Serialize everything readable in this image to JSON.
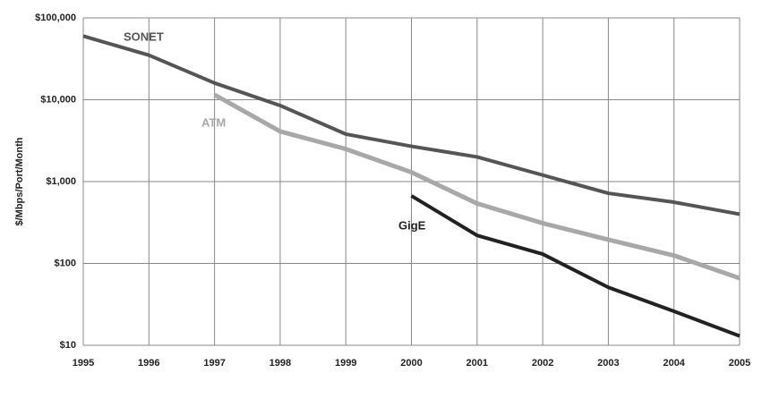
{
  "chart_data": {
    "type": "line",
    "y_label": "$/Mbps/Port/Month",
    "x": [
      1995,
      1996,
      1997,
      1998,
      1999,
      2000,
      2001,
      2002,
      2003,
      2004,
      2005
    ],
    "series": [
      {
        "name": "SONET",
        "color": "#555555",
        "values": [
          60000,
          35000,
          16000,
          8500,
          3800,
          2700,
          2000,
          1200,
          720,
          560,
          400
        ]
      },
      {
        "name": "ATM",
        "color": "#a8a8a8",
        "values": [
          null,
          null,
          11500,
          4100,
          2500,
          1300,
          540,
          310,
          195,
          125,
          66
        ]
      },
      {
        "name": "GigE",
        "color": "#222222",
        "values": [
          null,
          null,
          null,
          null,
          null,
          670,
          220,
          130,
          51,
          26,
          13
        ]
      }
    ],
    "xlim": [
      1995,
      2005
    ],
    "xticks": [
      1995,
      1996,
      1997,
      1998,
      1999,
      2000,
      2001,
      2002,
      2003,
      2004,
      2005
    ],
    "ylim": [
      10,
      100000
    ],
    "yticks": [
      {
        "value": 10,
        "label": "$10"
      },
      {
        "value": 100,
        "label": "$100"
      },
      {
        "value": 1000,
        "label": "$1,000"
      },
      {
        "value": 10000,
        "label": "$10,000"
      },
      {
        "value": 100000,
        "label": "$100,000"
      }
    ],
    "y_scale": "log",
    "grid": true
  }
}
